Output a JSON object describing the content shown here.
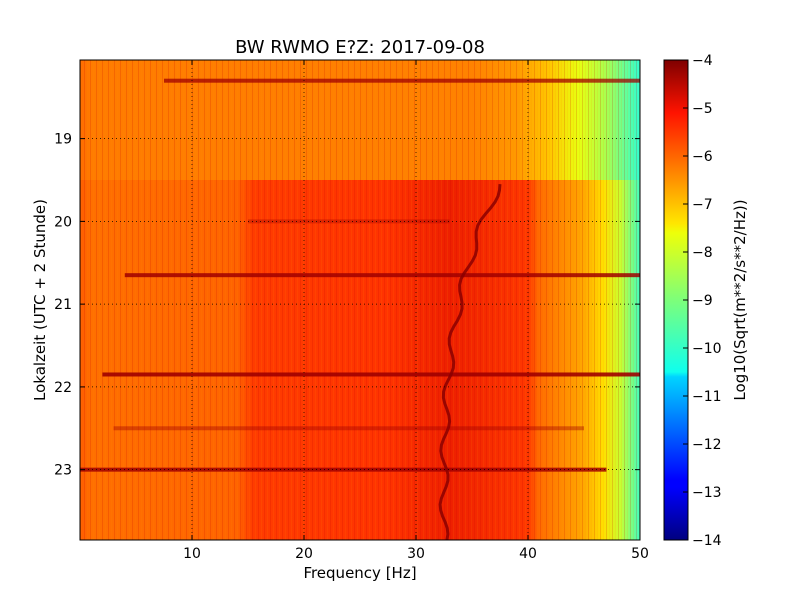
{
  "chart_data": {
    "type": "heatmap",
    "title": "BW RWMO E?Z: 2017-09-08",
    "xlabel": "Frequency [Hz]",
    "ylabel": "Lokalzeit (UTC + 2 Stunde)",
    "xlim": [
      0,
      50
    ],
    "ylim": [
      18.05,
      23.85
    ],
    "y_inverted": true,
    "x_ticks": [
      10,
      20,
      30,
      40,
      50
    ],
    "y_ticks": [
      19,
      20,
      21,
      22,
      23
    ],
    "grid": true,
    "colorbar": {
      "label": "Log10(Sqrt(m**2/s**2/Hz))",
      "range": [
        -14,
        -4
      ],
      "ticks": [
        -4,
        -5,
        -6,
        -7,
        -8,
        -9,
        -10,
        -11,
        -12,
        -13,
        -14
      ],
      "colormap": "jet"
    },
    "regions": [
      {
        "period": "before 19.5 h",
        "pattern": "orange ~-6 below 38 Hz, falling to yellow/cyan (-8 to -10) toward 50 Hz"
      },
      {
        "period": "after 19.5 h",
        "pattern": "red ~-5 between 15 and 41 Hz, orange elsewhere, yellow/cyan toward 50 Hz"
      }
    ],
    "band_times_h": [
      18.3,
      20.0,
      20.65,
      21.85,
      22.5,
      23.0
    ],
    "tonal_line": {
      "start_freq_hz": 37.5,
      "start_time_h": 19.55,
      "end_freq_hz": 32.5,
      "end_time_h": 23.85
    }
  }
}
